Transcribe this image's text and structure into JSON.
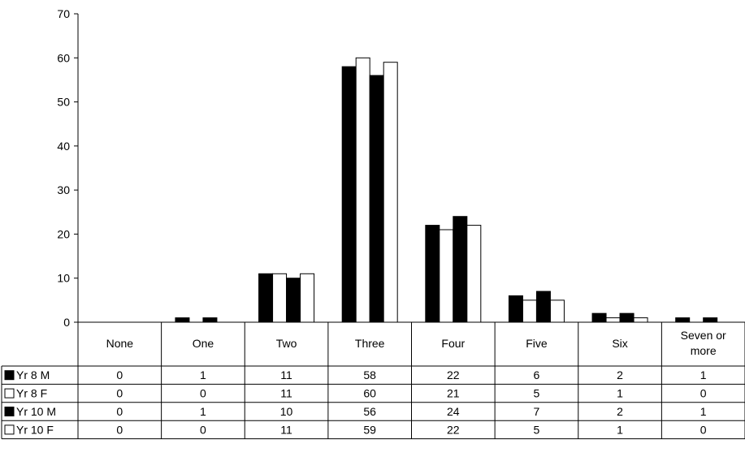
{
  "chart_data": {
    "type": "bar",
    "ylim": [
      0,
      70
    ],
    "yticks": [
      0,
      10,
      20,
      30,
      40,
      50,
      60,
      70
    ],
    "categories": [
      "None",
      "One",
      "Two",
      "Three",
      "Four",
      "Five",
      "Six",
      "Seven or more"
    ],
    "series": [
      {
        "name": "Yr 8 M",
        "color": "#000000",
        "values": [
          0,
          1,
          11,
          58,
          22,
          6,
          2,
          1
        ]
      },
      {
        "name": "Yr 8 F",
        "color": "#ffffff",
        "values": [
          0,
          0,
          11,
          60,
          21,
          5,
          1,
          0
        ]
      },
      {
        "name": "Yr 10 M",
        "color": "#000000",
        "values": [
          0,
          1,
          10,
          56,
          24,
          7,
          2,
          1
        ]
      },
      {
        "name": "Yr 10 F",
        "color": "#ffffff",
        "values": [
          0,
          0,
          11,
          59,
          22,
          5,
          1,
          0
        ]
      }
    ],
    "grid": false,
    "legend": "data-table-left"
  }
}
